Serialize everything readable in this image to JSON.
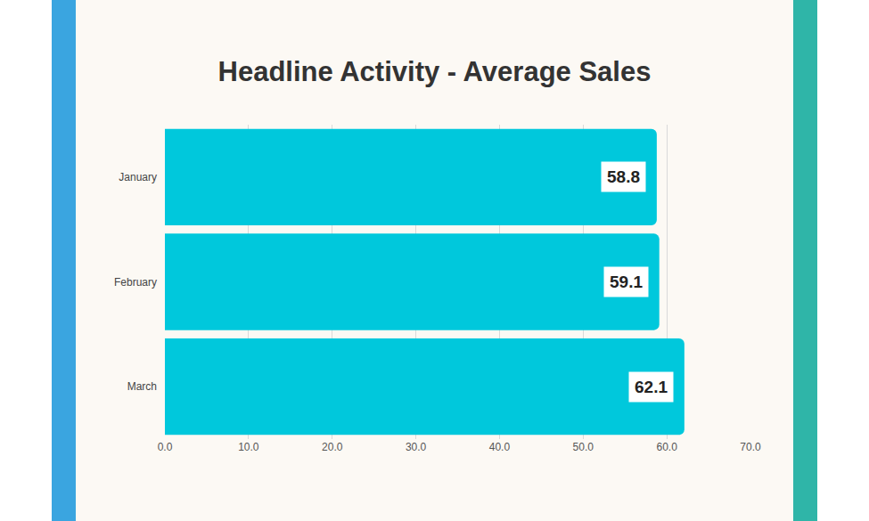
{
  "chart_data": {
    "type": "bar",
    "title": "Headline Activity - Average Sales",
    "orientation": "horizontal",
    "categories": [
      "January",
      "February",
      "March"
    ],
    "values": [
      58.8,
      59.1,
      62.1
    ],
    "color": "#00c8dc",
    "xlim": [
      0,
      70
    ],
    "xticks": [
      {
        "value": 0,
        "label": "0.0"
      },
      {
        "value": 10,
        "label": "10.0"
      },
      {
        "value": 20,
        "label": "20.0"
      },
      {
        "value": 30,
        "label": "30.0"
      },
      {
        "value": 40,
        "label": "40.0"
      },
      {
        "value": 50,
        "label": "50.0"
      },
      {
        "value": 60,
        "label": "60.0"
      },
      {
        "value": 70,
        "label": "70.0"
      }
    ],
    "grid": true,
    "data_labels": true
  }
}
